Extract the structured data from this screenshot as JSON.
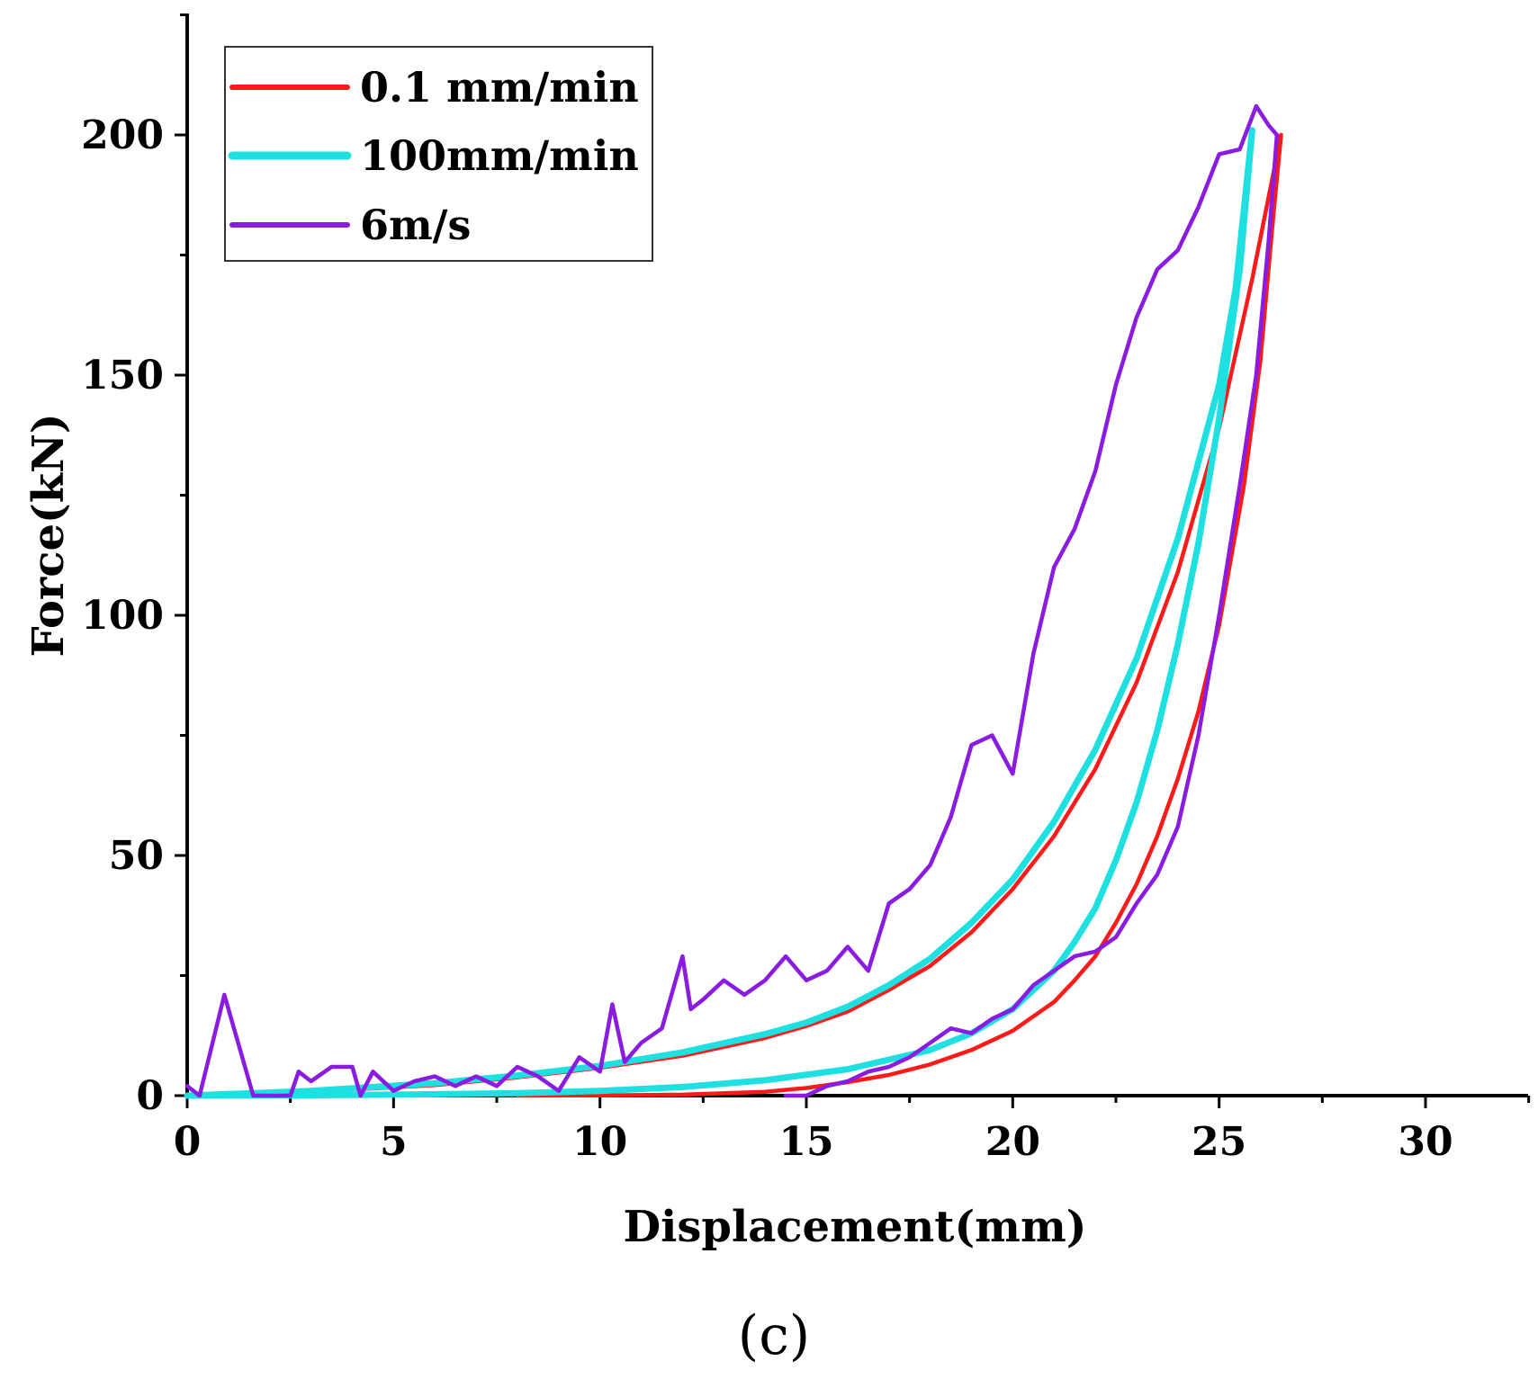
{
  "chart_data": {
    "type": "line",
    "title": "",
    "xlabel": "Displacement(mm)",
    "ylabel": "Force(kN)",
    "xlim": [
      0,
      32.5
    ],
    "ylim": [
      0,
      225
    ],
    "x_ticks": [
      0,
      5,
      10,
      15,
      20,
      25,
      30
    ],
    "y_ticks": [
      0,
      50,
      100,
      150,
      200
    ],
    "grid": false,
    "legend_position": "top-left",
    "panel_label": "(c)",
    "series": [
      {
        "name": "0.1 mm/min",
        "color": "#ff1a1a",
        "x": [
          0,
          3,
          6,
          8,
          10,
          12,
          14,
          15,
          16,
          17,
          18,
          19,
          20,
          21,
          22,
          23,
          24,
          25,
          25.8,
          26.5,
          26.3,
          26.0,
          25.6,
          25.0,
          24.5,
          24.0,
          23.5,
          23.0,
          22.5,
          22.0,
          21.5,
          21.0,
          20.0,
          19.0,
          18.0,
          17.0,
          16.0,
          15.0,
          14.0,
          12.0,
          10.0,
          8.0
        ],
        "y": [
          0,
          0.8,
          2.2,
          3.8,
          5.8,
          8.3,
          12,
          14.5,
          17.5,
          22,
          27,
          34,
          43,
          54,
          68,
          86,
          109,
          139,
          170,
          200,
          182,
          153,
          127,
          98,
          80,
          66,
          54,
          44,
          36,
          29,
          24,
          19.5,
          13.5,
          9.5,
          6.5,
          4.3,
          2.8,
          1.6,
          0.8,
          0.2,
          0.05,
          0
        ]
      },
      {
        "name": "100mm/min",
        "color": "#1ee0e0",
        "x": [
          0,
          3,
          6,
          8,
          10,
          12,
          14,
          15,
          16,
          17,
          18,
          19,
          20,
          21,
          22,
          23,
          24,
          25,
          25.4,
          25.8,
          25.5,
          25.0,
          24.5,
          24.0,
          23.5,
          23.0,
          22.5,
          22.0,
          21.5,
          21.0,
          20.0,
          19.0,
          18.0,
          16.0,
          14.0,
          12.0,
          10.0,
          8.0,
          5.0,
          2.0,
          0
        ],
        "y": [
          0,
          1,
          2.6,
          4.2,
          6.2,
          9,
          12.8,
          15.2,
          18.5,
          23,
          28.5,
          36,
          45,
          57,
          72,
          91,
          116,
          148,
          168,
          201,
          172,
          141,
          115,
          94,
          76,
          61,
          49,
          39,
          32,
          26,
          18,
          13,
          9.5,
          5.5,
          3.2,
          1.8,
          1.0,
          0.5,
          0.2,
          0.05,
          0
        ]
      },
      {
        "name": "6m/s",
        "color": "#8a1be0",
        "x": [
          0,
          0.3,
          0.9,
          1.6,
          2.5,
          2.7,
          3.0,
          3.5,
          4.0,
          4.2,
          4.5,
          5.0,
          5.5,
          6.0,
          6.5,
          7.0,
          7.5,
          8.0,
          8.5,
          9.0,
          9.5,
          10.0,
          10.3,
          10.6,
          11.0,
          11.5,
          12.0,
          12.2,
          12.5,
          13.0,
          13.5,
          14.0,
          14.5,
          15.0,
          15.5,
          16.0,
          16.5,
          17.0,
          17.5,
          18.0,
          18.5,
          19.0,
          19.5,
          20.0,
          20.5,
          21.0,
          21.5,
          22.0,
          22.5,
          23.0,
          23.5,
          24.0,
          24.5,
          25.0,
          25.5,
          25.9,
          26.2,
          26.4,
          26.2,
          25.9,
          25.5,
          25.0,
          24.5,
          24.0,
          23.5,
          23.0,
          22.5,
          22.0,
          21.5,
          21.0,
          20.5,
          20.0,
          19.5,
          19.0,
          18.5,
          18.0,
          17.5,
          17.0,
          16.5,
          16.0,
          15.5,
          15.0,
          14.5
        ],
        "y": [
          2,
          0,
          21,
          0,
          0,
          5,
          3,
          6,
          6,
          0,
          5,
          1,
          3,
          4,
          2,
          4,
          2,
          6,
          4,
          1,
          8,
          5,
          19,
          7,
          11,
          14,
          29,
          18,
          20,
          24,
          21,
          24,
          29,
          24,
          26,
          31,
          26,
          40,
          43,
          48,
          58,
          73,
          75,
          67,
          92,
          110,
          118,
          130,
          148,
          162,
          172,
          176,
          185,
          196,
          197,
          206,
          202,
          200,
          178,
          150,
          127,
          100,
          75,
          56,
          46,
          40,
          33,
          30,
          29,
          26,
          23,
          18,
          16,
          13,
          14,
          11,
          8,
          6,
          5,
          3,
          2,
          0,
          0
        ]
      }
    ]
  }
}
